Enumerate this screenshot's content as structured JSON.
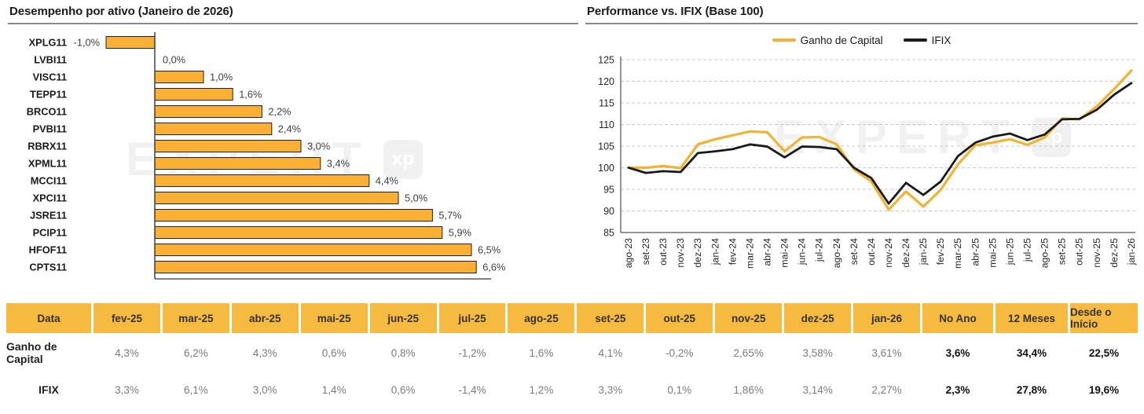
{
  "colors": {
    "bar_fill": "#FBB034",
    "bar_stroke": "#222222",
    "accent_yellow": "#F6BA41",
    "line_yellow": "#F2B234",
    "line_black": "#1A1A1A",
    "grid": "#C9C9C9",
    "axis": "#595959",
    "muted_text": "#7D7D7D",
    "dark_text": "#1A1A1A"
  },
  "watermark": {
    "text": "EXPERT",
    "badge": "xp"
  },
  "chart_data": [
    {
      "type": "bar",
      "orientation": "horizontal",
      "title": "Desempenho por ativo (Janeiro de 2026)",
      "categories": [
        "XPLG11",
        "LVBI11",
        "VISC11",
        "TEPP11",
        "BRCO11",
        "PVBI11",
        "RBRX11",
        "XPML11",
        "MCCI11",
        "XPCI11",
        "JSRE11",
        "PCIP11",
        "HFOF11",
        "CPTS11"
      ],
      "values": [
        -1.0,
        0.0,
        1.0,
        1.6,
        2.2,
        2.4,
        3.0,
        3.4,
        4.4,
        5.0,
        5.7,
        5.9,
        6.5,
        6.6
      ],
      "value_labels": [
        "-1,0%",
        "0,0%",
        "1,0%",
        "1,6%",
        "2,2%",
        "2,4%",
        "3,0%",
        "3,4%",
        "4,4%",
        "5,0%",
        "5,7%",
        "5,9%",
        "6,5%",
        "6,6%"
      ],
      "unit": "%",
      "xlim": [
        -1.8,
        7.6
      ],
      "grid": false
    },
    {
      "type": "line",
      "title": "Performance vs. IFIX (Base 100)",
      "x": [
        "ago-23",
        "set-23",
        "out-23",
        "nov-23",
        "dez-23",
        "jan-24",
        "fev-24",
        "mar-24",
        "abr-24",
        "mai-24",
        "jun-24",
        "jul-24",
        "ago-24",
        "set-24",
        "out-24",
        "nov-24",
        "dez-24",
        "jan-25",
        "fev-25",
        "mar-25",
        "abr-25",
        "mai-25",
        "jun-25",
        "jul-25",
        "ago-25",
        "set-25",
        "out-25",
        "nov-25",
        "dez-25",
        "jan-26"
      ],
      "series": [
        {
          "name": "Ganho de Capital",
          "color": "#F2B234",
          "values": [
            100.0,
            100.0,
            100.4,
            99.9,
            105.4,
            106.6,
            107.5,
            108.4,
            108.2,
            103.8,
            107.0,
            107.1,
            105.4,
            99.6,
            96.8,
            90.3,
            94.5,
            91.0,
            94.9,
            100.8,
            105.2,
            105.8,
            106.6,
            105.3,
            107.0,
            111.4,
            111.2,
            114.2,
            118.2,
            122.5
          ]
        },
        {
          "name": "IFIX",
          "color": "#1A1A1A",
          "values": [
            100.0,
            98.8,
            99.2,
            99.0,
            103.4,
            103.8,
            104.3,
            105.4,
            104.9,
            102.4,
            104.9,
            104.8,
            104.3,
            100.0,
            97.6,
            91.7,
            96.5,
            93.7,
            96.8,
            102.7,
            105.8,
            107.2,
            107.9,
            106.4,
            107.7,
            111.2,
            111.3,
            113.4,
            116.9,
            119.6
          ]
        }
      ],
      "ylim": [
        85,
        125
      ],
      "yticks": [
        85,
        90,
        95,
        100,
        105,
        110,
        115,
        120,
        125
      ],
      "grid": "horizontal-dashed",
      "legend_position": "top-center"
    }
  ],
  "table": {
    "header": [
      "Data",
      "fev-25",
      "mar-25",
      "abr-25",
      "mai-25",
      "jun-25",
      "jul-25",
      "ago-25",
      "set-25",
      "out-25",
      "nov-25",
      "dez-25",
      "jan-26",
      "No Ano",
      "12 Meses",
      "Desde o Início"
    ],
    "rows": [
      {
        "label": "Ganho de Capital",
        "values": [
          "4,3%",
          "6,2%",
          "4,3%",
          "0,6%",
          "0,8%",
          "-1,2%",
          "1,6%",
          "4,1%",
          "-0,2%",
          "2,65%",
          "3,58%",
          "3,61%",
          "3,6%",
          "34,4%",
          "22,5%"
        ]
      },
      {
        "label": "IFIX",
        "values": [
          "3,3%",
          "6,1%",
          "3,0%",
          "1,4%",
          "0,6%",
          "-1,4%",
          "1,2%",
          "3,3%",
          "0,1%",
          "1,86%",
          "3,14%",
          "2,27%",
          "2,3%",
          "27,8%",
          "19,6%"
        ]
      }
    ],
    "bold_last_n": 3
  }
}
